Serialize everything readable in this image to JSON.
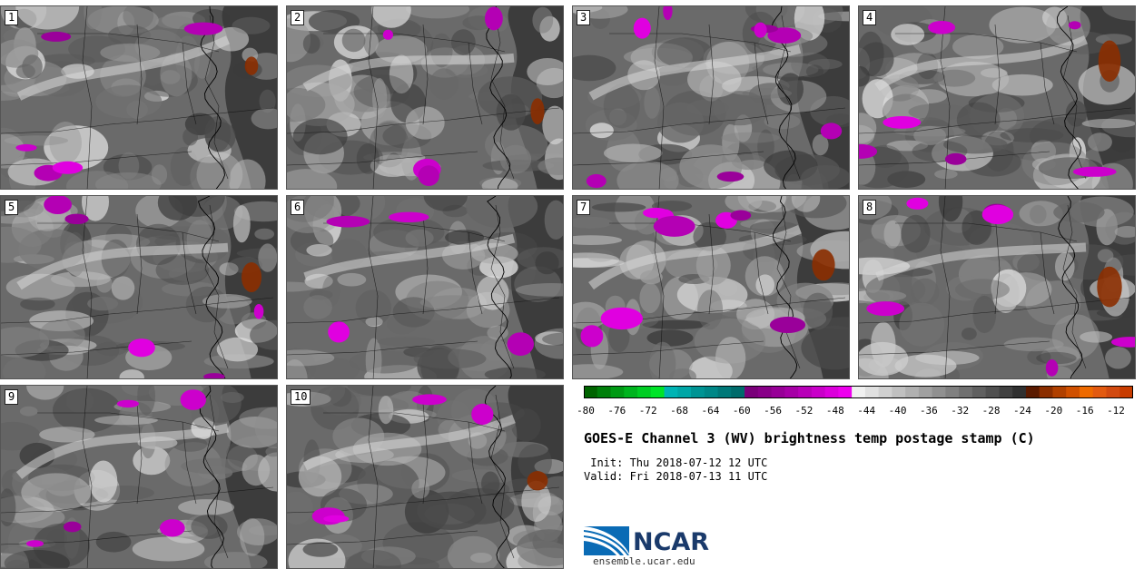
{
  "panels": [
    {
      "label": "1"
    },
    {
      "label": "2"
    },
    {
      "label": "3"
    },
    {
      "label": "4"
    },
    {
      "label": "5"
    },
    {
      "label": "6"
    },
    {
      "label": "7"
    },
    {
      "label": "8"
    },
    {
      "label": "9"
    },
    {
      "label": "10"
    }
  ],
  "colorbar": {
    "tick_labels": [
      "-80",
      "-76",
      "-72",
      "-68",
      "-64",
      "-60",
      "-56",
      "-52",
      "-48",
      "-44",
      "-40",
      "-36",
      "-32",
      "-28",
      "-24",
      "-20",
      "-16",
      "-12"
    ],
    "colors": [
      "#006400",
      "#007f0a",
      "#009a14",
      "#00b41e",
      "#00cd23",
      "#00e428",
      "#00b4b4",
      "#00a6a6",
      "#009494",
      "#008787",
      "#007878",
      "#006b6b",
      "#7a007a",
      "#880088",
      "#970097",
      "#a600a6",
      "#b800b8",
      "#c900c9",
      "#dc00dc",
      "#ee00ee",
      "#f0f0f0",
      "#e0e0e0",
      "#d0d0d0",
      "#c0c0c0",
      "#b0b0b0",
      "#a0a0a0",
      "#909090",
      "#808080",
      "#707070",
      "#606060",
      "#505050",
      "#404040",
      "#303030",
      "#5a1a00",
      "#8b2e00",
      "#b04000",
      "#d05000",
      "#ee6a00",
      "#e25a10",
      "#d24a10",
      "#c83c00"
    ]
  },
  "title": "GOES-E Channel 3 (WV) brightness temp postage stamp (C)",
  "init": " Init: Thu 2018-07-12 12 UTC",
  "valid": "Valid: Fri 2018-07-13 11 UTC",
  "logo_text": "NCAR",
  "site": "ensemble.ucar.edu"
}
